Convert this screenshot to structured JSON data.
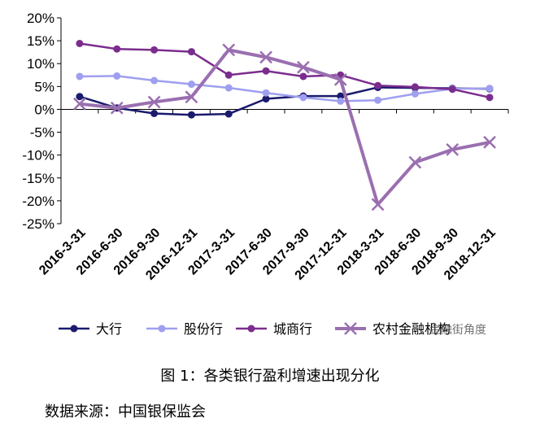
{
  "chart_data": {
    "type": "line",
    "title": "",
    "xlabel": "",
    "ylabel": "",
    "ylim": [
      -25,
      20
    ],
    "ytick_step": 5,
    "yticks_labels": [
      "20%",
      "15%",
      "10%",
      "5%",
      "0%",
      "-5%",
      "-10%",
      "-15%",
      "-20%",
      "-25%"
    ],
    "categories": [
      "2016-3-31",
      "2016-6-30",
      "2016-9-30",
      "2016-12-31",
      "2017-3-31",
      "2017-6-30",
      "2017-9-30",
      "2017-12-31",
      "2018-3-31",
      "2018-6-30",
      "2018-9-30",
      "2018-12-31"
    ],
    "series": [
      {
        "name": "大行",
        "color": "#1a1a6e",
        "marker": "circle",
        "values": [
          2.8,
          0.3,
          -0.9,
          -1.2,
          -1.0,
          2.3,
          2.9,
          2.9,
          4.8,
          4.7,
          4.6,
          4.5
        ]
      },
      {
        "name": "股份行",
        "color": "#9f9ff0",
        "marker": "circle",
        "values": [
          7.2,
          7.3,
          6.3,
          5.5,
          4.7,
          3.6,
          2.6,
          1.8,
          2.0,
          3.4,
          4.5,
          4.6
        ]
      },
      {
        "name": "城商行",
        "color": "#7b2d8e",
        "marker": "circle",
        "values": [
          14.4,
          13.2,
          13.0,
          12.6,
          7.5,
          8.4,
          7.2,
          7.5,
          5.2,
          4.9,
          4.4,
          2.6
        ]
      },
      {
        "name": "农村金融机构",
        "color": "#9a6fb0",
        "marker": "x",
        "values": [
          1.2,
          0.3,
          1.6,
          2.7,
          13.0,
          11.4,
          9.2,
          6.5,
          -20.8,
          -11.6,
          -8.8,
          -7.2
        ]
      }
    ],
    "legend_position": "bottom",
    "grid": false
  },
  "watermark": "金融街角度",
  "caption": "图 1：各类银行盈利增速出现分化",
  "source": "数据来源：中国银保监会"
}
